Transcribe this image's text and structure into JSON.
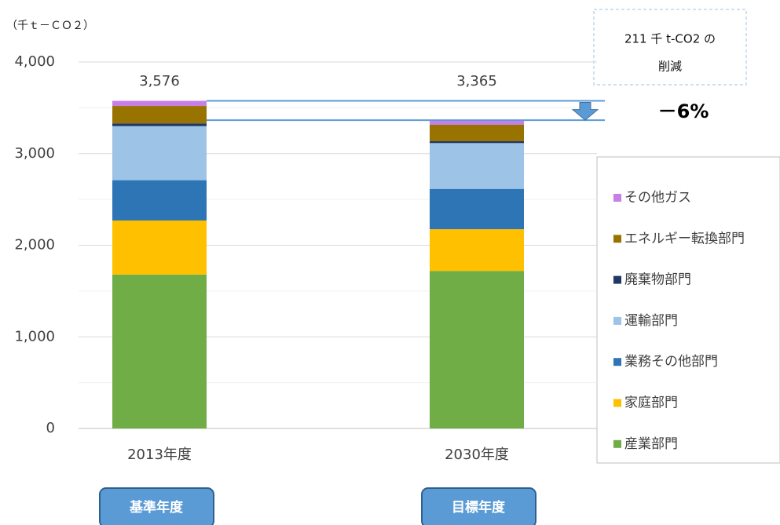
{
  "chart_data": {
    "type": "stacked_bar",
    "unit_label": "（千ｔ－ＣＯ２）",
    "categories": [
      "2013年度",
      "2030年度"
    ],
    "series": [
      {
        "name": "産業部門",
        "color": "#70ad47",
        "values": [
          1680,
          1720
        ]
      },
      {
        "name": "家庭部門",
        "color": "#ffc000",
        "values": [
          590,
          455
        ]
      },
      {
        "name": "業務その他部門",
        "color": "#2e75b6",
        "values": [
          440,
          440
        ]
      },
      {
        "name": "運輸部門",
        "color": "#9dc3e6",
        "values": [
          590,
          500
        ]
      },
      {
        "name": "廃棄物部門",
        "color": "#203864",
        "values": [
          30,
          20
        ]
      },
      {
        "name": "エネルギー転換部門",
        "color": "#997300",
        "values": [
          190,
          180
        ]
      },
      {
        "name": "その他ガス",
        "color": "#c77fe6",
        "values": [
          56,
          50
        ]
      }
    ],
    "totals": {
      "values": [
        3576,
        3365
      ],
      "value_labels": [
        "3,576",
        "3,365"
      ]
    },
    "ylim": [
      0,
      4000
    ],
    "yticks": [
      0,
      {
        "value": 1000,
        "label": "1,000"
      },
      {
        "value": 2000,
        "label": "2,000"
      },
      {
        "value": 3000,
        "label": "3,000"
      },
      {
        "value": 4000,
        "label": "4,000"
      }
    ],
    "minor_yticks": [
      500,
      1500,
      2500,
      3500
    ],
    "grid": true,
    "legend": "right",
    "annotation": {
      "lines": [
        "211 千 t-CO2 の",
        "削減"
      ],
      "change": "－6%"
    },
    "buttons": [
      "基準年度",
      "目標年度"
    ]
  }
}
